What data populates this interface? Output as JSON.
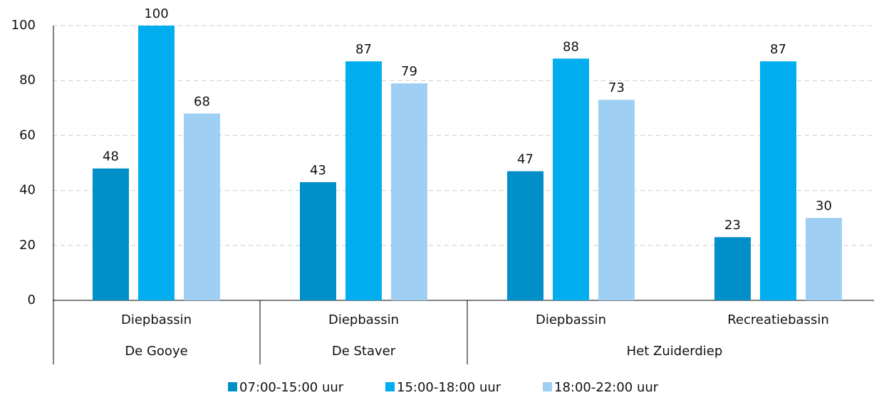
{
  "chart_data": {
    "type": "bar",
    "groups": [
      {
        "label": "De Gooye",
        "categories": [
          "Diepbassin"
        ]
      },
      {
        "label": "De Staver",
        "categories": [
          "Diepbassin"
        ]
      },
      {
        "label": "Het Zuiderdiep",
        "categories": [
          "Diepbassin",
          "Recreatiebassin"
        ]
      }
    ],
    "series": [
      {
        "name": "07:00-15:00 uur",
        "color": "#008fc8",
        "values": [
          48,
          43,
          47,
          23
        ]
      },
      {
        "name": "15:00-18:00 uur",
        "color": "#00adef",
        "values": [
          100,
          87,
          88,
          87
        ]
      },
      {
        "name": "18:00-22:00 uur",
        "color": "#9fd0f3",
        "values": [
          68,
          79,
          73,
          30
        ]
      }
    ],
    "ylim": [
      0,
      100
    ],
    "yticks": [
      0,
      20,
      40,
      60,
      80,
      100
    ],
    "grid": true,
    "legend": "bottom"
  }
}
